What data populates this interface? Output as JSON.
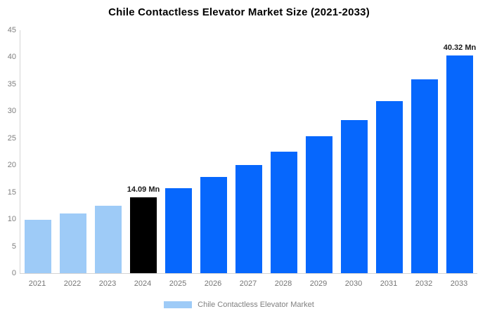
{
  "chart_data": {
    "type": "bar",
    "title": "Chile Contactless Elevator Market Size (2021-2033)",
    "categories": [
      "2021",
      "2022",
      "2023",
      "2024",
      "2025",
      "2026",
      "2027",
      "2028",
      "2029",
      "2030",
      "2031",
      "2032",
      "2033"
    ],
    "values": [
      9.9,
      11.1,
      12.5,
      14.09,
      15.8,
      17.8,
      20.0,
      22.5,
      25.3,
      28.4,
      31.9,
      35.9,
      40.32
    ],
    "value_unit": "Mn",
    "data_labels": {
      "2024": "14.09 Mn",
      "2033": "40.32 Mn"
    },
    "ylim": [
      0,
      45
    ],
    "yticks": [
      0,
      5,
      10,
      15,
      20,
      25,
      30,
      35,
      40,
      45
    ],
    "grid": false,
    "color_keys": [
      "historical",
      "historical",
      "historical",
      "highlight",
      "forecast",
      "forecast",
      "forecast",
      "forecast",
      "forecast",
      "forecast",
      "forecast",
      "forecast",
      "forecast"
    ],
    "palette": {
      "historical": "#9ECBF7",
      "highlight": "#000000",
      "forecast": "#0667FD"
    },
    "legend_position": "bottom-center"
  },
  "legend": {
    "label": "Chile Contactless Elevator Market",
    "swatch_color": "#9ECBF7"
  }
}
